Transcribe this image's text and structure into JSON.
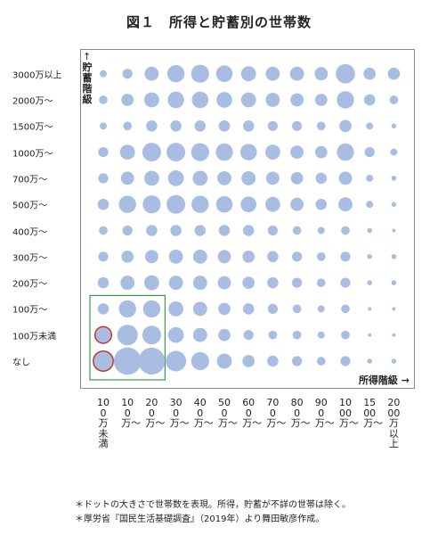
{
  "title": "図１　所得と貯蓄別の世帯数",
  "notes": [
    "＊ドットの大きさで世帯数を表現。所得，貯蓄が不詳の世帯は除く。",
    "＊厚労省『国民生活基礎調査』（2019年）より舞田敏彦作成。"
  ],
  "chart_data": {
    "type": "scatter",
    "title": "図１　所得と貯蓄別の世帯数",
    "xlabel": "所得階級",
    "ylabel": "貯蓄階級",
    "x_arrow": "→",
    "y_arrow": "↑",
    "x_categories": [
      "100万未満",
      "100万〜",
      "200万〜",
      "300万〜",
      "400万〜",
      "500万〜",
      "600万〜",
      "700万〜",
      "800万〜",
      "900万〜",
      "1000万〜",
      "1500万〜",
      "2000万以上"
    ],
    "y_categories": [
      "なし",
      "100万未満",
      "100万〜",
      "200万〜",
      "300万〜",
      "400万〜",
      "500万〜",
      "700万〜",
      "1000万〜",
      "1500万〜",
      "2000万〜",
      "3000万以上"
    ],
    "values": [
      [
        16,
        30,
        29,
        17,
        13,
        9,
        6,
        5,
        4,
        3,
        4,
        1,
        1
      ],
      [
        11,
        17,
        14,
        10,
        8,
        6,
        4,
        3,
        3,
        2,
        3,
        0.5,
        0.5
      ],
      [
        5,
        12,
        12,
        9,
        8,
        6,
        5,
        4,
        3,
        2,
        3,
        0.5,
        0.5
      ],
      [
        5,
        8,
        9,
        8,
        8,
        7,
        6,
        5,
        4,
        3,
        4,
        1,
        1
      ],
      [
        4,
        6,
        7,
        8,
        8,
        7,
        6,
        5,
        4,
        3,
        4,
        1,
        1
      ],
      [
        3,
        4,
        5,
        5,
        5,
        5,
        5,
        4,
        3,
        2,
        3,
        1,
        0.5
      ],
      [
        5,
        12,
        13,
        14,
        12,
        11,
        10,
        9,
        7,
        5,
        8,
        2,
        1
      ],
      [
        4,
        7,
        9,
        10,
        9,
        8,
        8,
        7,
        6,
        5,
        7,
        2,
        1
      ],
      [
        4,
        9,
        14,
        14,
        13,
        12,
        11,
        9,
        7,
        6,
        12,
        4,
        2
      ],
      [
        2,
        3,
        5,
        5,
        5,
        5,
        5,
        4,
        4,
        3,
        6,
        2,
        1
      ],
      [
        3,
        6,
        9,
        11,
        11,
        10,
        9,
        8,
        7,
        6,
        12,
        5,
        3
      ],
      [
        2,
        4,
        8,
        12,
        13,
        11,
        9,
        8,
        8,
        7,
        15,
        6,
        6
      ]
    ],
    "color": "#a9bde3",
    "highlight_circle_color": "#c0392b",
    "highlighted_points": [
      [
        0,
        0
      ],
      [
        0,
        1
      ]
    ],
    "highlight_box_color": "#3a9a48",
    "highlight_box_range": {
      "x": [
        0,
        2
      ],
      "y": [
        0,
        2
      ]
    }
  }
}
